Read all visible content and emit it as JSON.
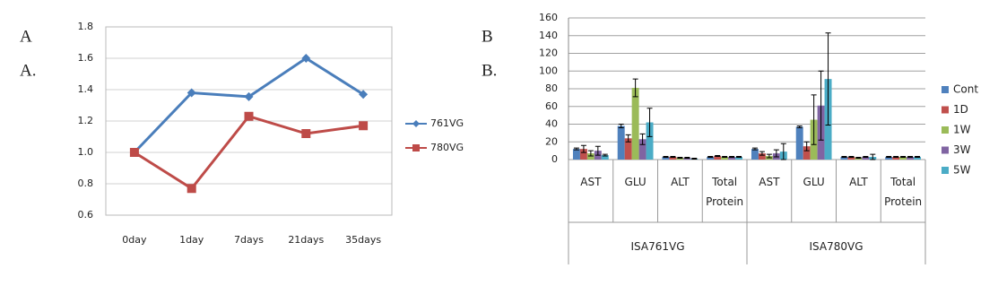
{
  "chart_data": [
    {
      "type": "line",
      "panel_labels": [
        "A",
        "A."
      ],
      "categories": [
        "0day",
        "1day",
        "7days",
        "21days",
        "35days"
      ],
      "series": [
        {
          "name": "761VG",
          "color": "#4a7ebb",
          "marker": "diamond",
          "values": [
            1.0,
            1.38,
            1.355,
            1.6,
            1.37
          ]
        },
        {
          "name": "780VG",
          "color": "#be4b48",
          "marker": "square",
          "values": [
            1.0,
            0.77,
            1.23,
            1.12,
            1.17
          ]
        }
      ],
      "ylim": [
        0.6,
        1.8
      ],
      "yticks": [
        0.6,
        0.8,
        {
          "value": 1,
          "label": "1.0"
        },
        1.2,
        1.4,
        1.6,
        1.8
      ],
      "grid": true,
      "legend": "right"
    },
    {
      "type": "bar",
      "panel_labels": [
        "B",
        "B."
      ],
      "groups": [
        "ISA761VG",
        "ISA780VG"
      ],
      "categories": [
        "AST",
        "GLU",
        "ALT",
        "Total Protein",
        "AST",
        "GLU",
        "ALT",
        "Total Protein"
      ],
      "series": [
        {
          "name": "Cont",
          "color": "#4f81bd",
          "values": [
            12,
            38,
            3,
            3,
            12,
            37,
            3,
            3
          ],
          "errors": [
            1,
            2,
            0.5,
            0.5,
            1,
            1,
            0.5,
            0.5
          ]
        },
        {
          "name": "1D",
          "color": "#c0504d",
          "values": [
            12,
            24,
            3,
            4,
            7,
            15,
            3,
            3
          ],
          "errors": [
            4,
            4,
            0.5,
            0.5,
            2,
            5,
            0.5,
            0.5
          ]
        },
        {
          "name": "1W",
          "color": "#9bbb59",
          "values": [
            7,
            81,
            2,
            3,
            4,
            45,
            2,
            3
          ],
          "errors": [
            3,
            10,
            0.5,
            0.5,
            2,
            28,
            0.5,
            0.5
          ]
        },
        {
          "name": "3W",
          "color": "#8064a2",
          "values": [
            10,
            23,
            2,
            3,
            7,
            61,
            3,
            3
          ],
          "errors": [
            5,
            6,
            0.5,
            0.5,
            4,
            39,
            0.5,
            0.5
          ]
        },
        {
          "name": "5W",
          "color": "#4bacc6",
          "values": [
            5,
            42,
            1,
            3,
            9,
            91,
            3,
            3
          ],
          "errors": [
            1,
            16,
            0.5,
            0.5,
            9,
            52,
            3,
            0.5
          ]
        }
      ],
      "ylim": [
        0,
        160
      ],
      "yticks": [
        0,
        20,
        40,
        60,
        80,
        100,
        120,
        140,
        160
      ],
      "grid": true,
      "legend": "right"
    }
  ]
}
